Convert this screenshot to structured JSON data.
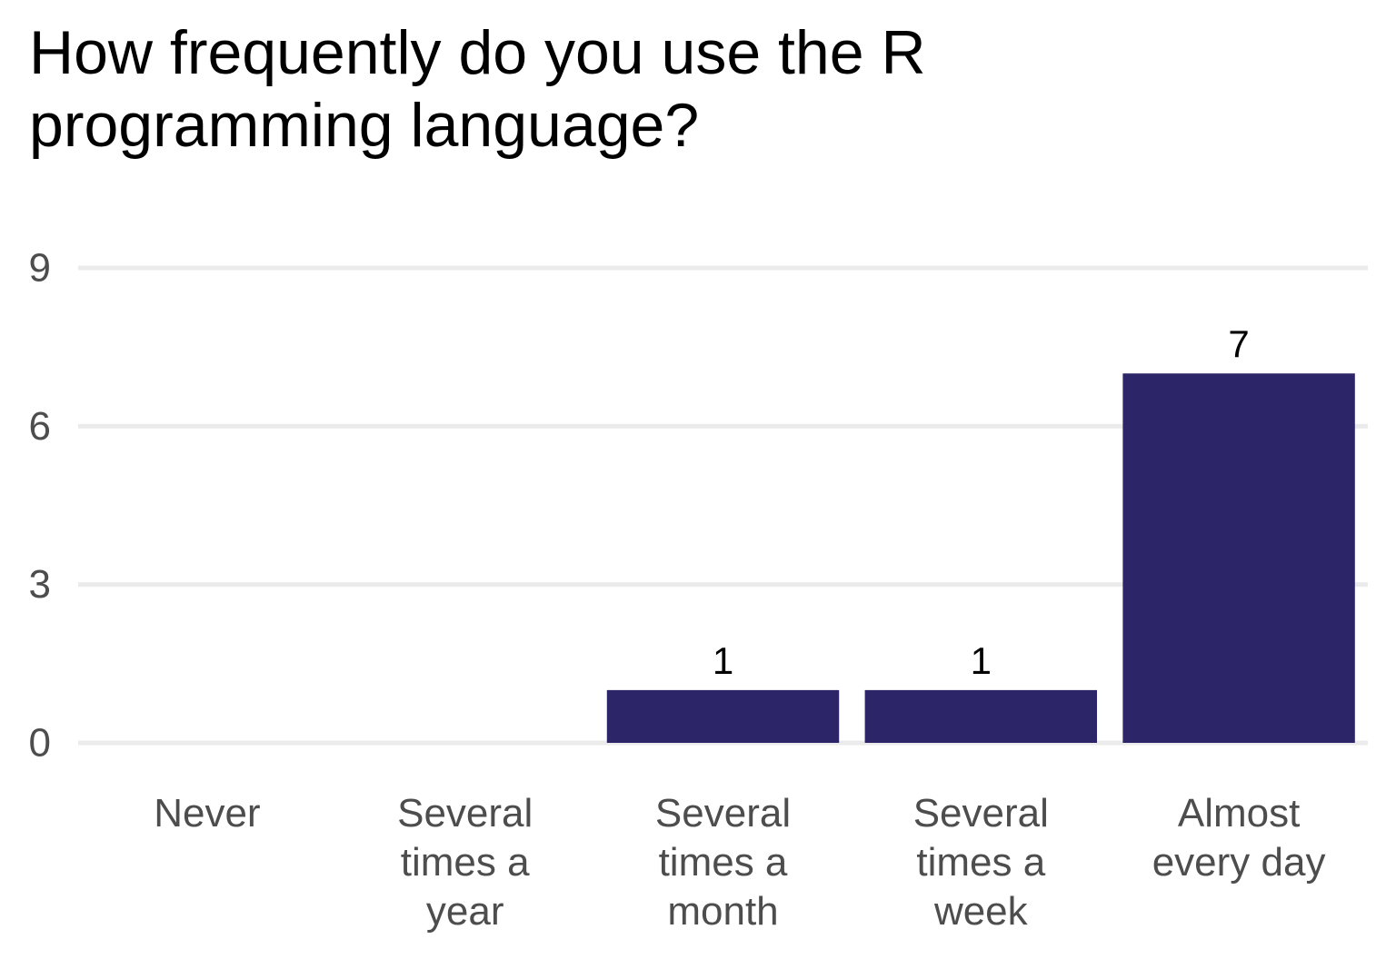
{
  "chart_data": {
    "type": "bar",
    "title_lines": [
      "How frequently do you use the R",
      "programming language?"
    ],
    "categories": [
      [
        "Never"
      ],
      [
        "Several",
        "times a",
        "year"
      ],
      [
        "Several",
        "times a",
        "month"
      ],
      [
        "Several",
        "times a",
        "week"
      ],
      [
        "Almost",
        "every day"
      ]
    ],
    "values": [
      0,
      0,
      1,
      1,
      7
    ],
    "data_labels": [
      "",
      "",
      "1",
      "1",
      "7"
    ],
    "xlabel": "",
    "ylabel": "",
    "ylim": [
      0,
      9
    ],
    "yticks": [
      0,
      3,
      6,
      9
    ],
    "grid": "horizontal-major",
    "legend": "none",
    "bar_color": "#2c2568",
    "grid_color": "#ebebeb",
    "tick_label_color": "#4d4d4d"
  }
}
